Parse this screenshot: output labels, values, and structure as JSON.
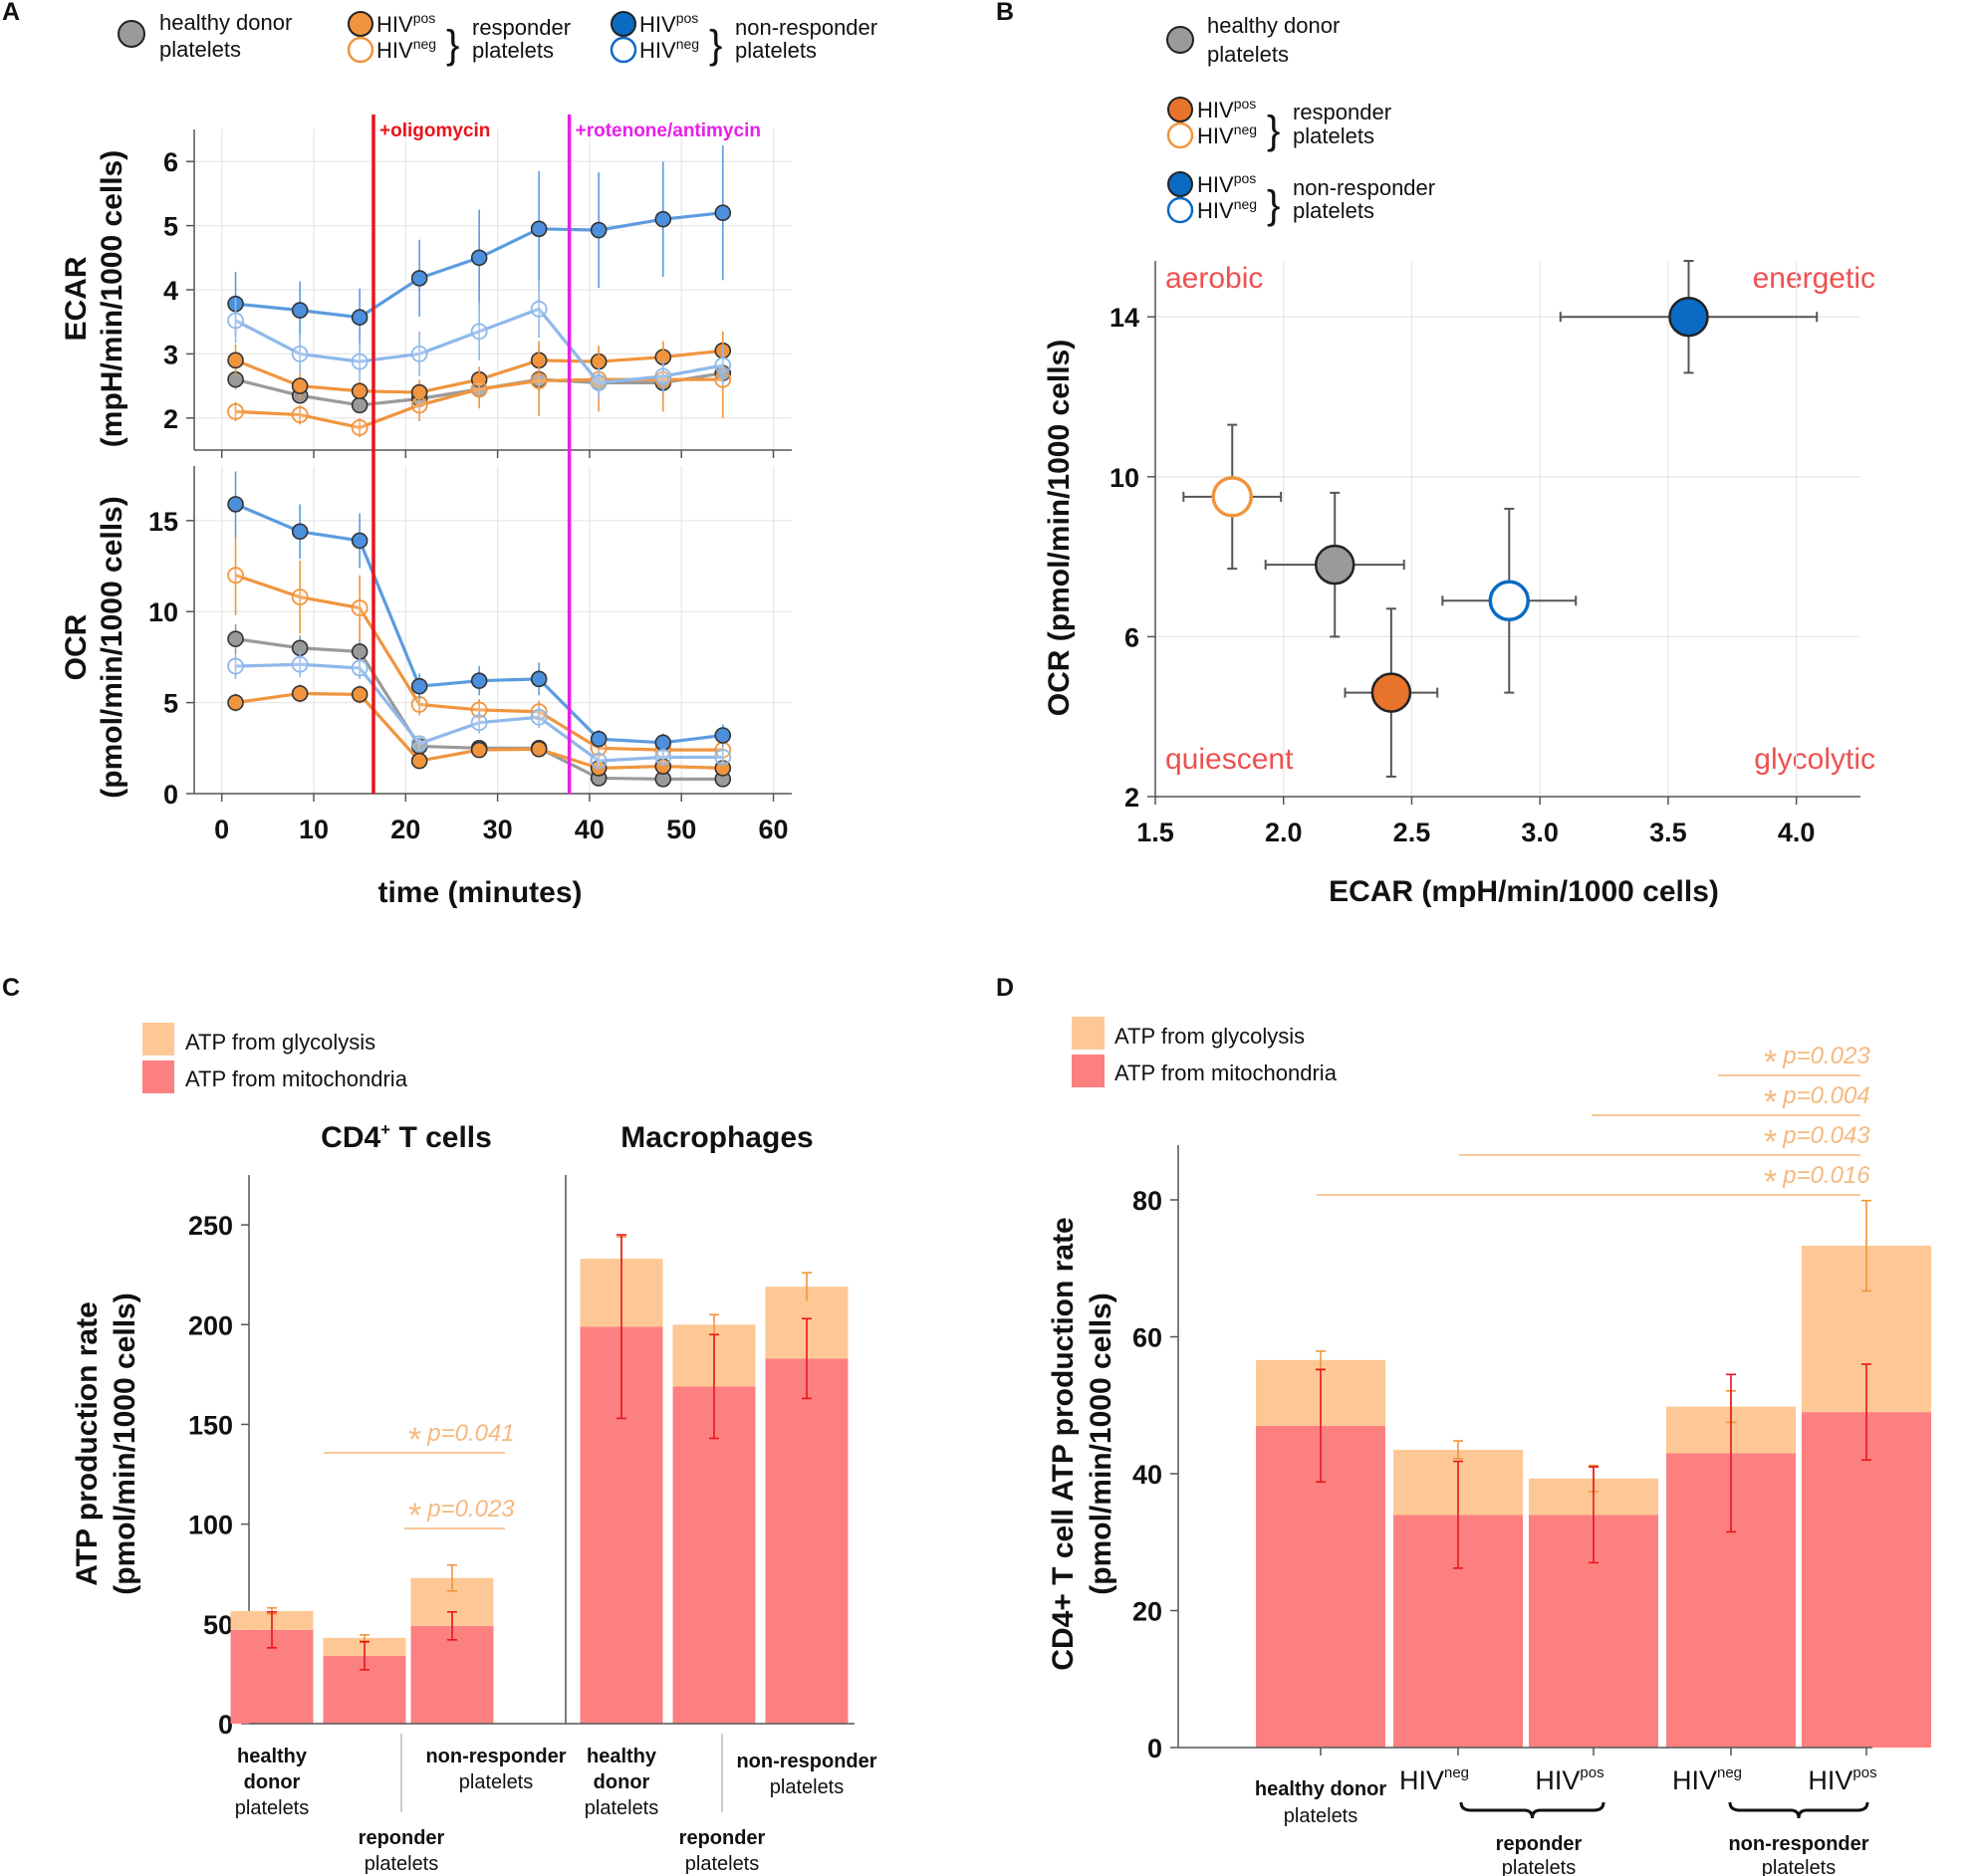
{
  "colors": {
    "gray": "#9a9a9a",
    "orange": "#f0953e",
    "orange_dark": "#e8732b",
    "blue_fill": "#4c8fdc",
    "blue_line": "#5b9be0",
    "blue_dark": "#0a6ac4",
    "ecar_light_blue": "#8fb8ea",
    "red_line": "#e8141b",
    "magenta_line": "#e81fe8",
    "glyco": "#fdc895",
    "mito": "#fd8080",
    "quadrant_label": "#ef5050",
    "sig": "#f5b97f"
  },
  "panels": {
    "A": "A",
    "B": "B",
    "C": "C",
    "D": "D"
  },
  "legend_top": {
    "healthy": [
      "healthy donor",
      "platelets"
    ],
    "responder": [
      "responder",
      "platelets"
    ],
    "non_responder": [
      "non-responder",
      "platelets"
    ],
    "hiv": "HIV",
    "pos": "pos",
    "neg": "neg"
  },
  "chart_data": [
    {
      "id": "A-ECAR",
      "type": "line",
      "title": "",
      "xlabel": "time (minutes)",
      "ylabel": [
        "ECAR",
        "(mpH/min/1000 cells)"
      ],
      "xlim": [
        -3,
        62
      ],
      "ylim": [
        1.5,
        6.5
      ],
      "xticks": [
        0,
        10,
        20,
        30,
        40,
        50,
        60
      ],
      "yticks": [
        2,
        3,
        4,
        5,
        6
      ],
      "x": [
        1.5,
        8.5,
        15,
        21.5,
        28,
        34.5,
        41,
        48,
        54.5
      ],
      "annotations": [
        {
          "label": "+oligomycin",
          "x": 16.5,
          "color": "#e8141b"
        },
        {
          "label": "+rotenone/antimycin",
          "x": 37.8,
          "color": "#e81fe8"
        }
      ],
      "series": [
        {
          "name": "healthy donor platelets",
          "values": [
            2.6,
            2.35,
            2.2,
            2.3,
            2.45,
            2.6,
            2.55,
            2.55,
            2.7
          ],
          "errors": [
            0.15,
            0.12,
            0.1,
            0.12,
            0.15,
            0.2,
            0.15,
            0.18,
            0.2
          ]
        },
        {
          "name": "HIVpos responder platelets",
          "values": [
            2.9,
            2.5,
            2.42,
            2.4,
            2.6,
            2.9,
            2.88,
            2.95,
            3.05
          ],
          "errors": [
            0.25,
            0.2,
            0.15,
            0.2,
            0.2,
            0.3,
            0.25,
            0.25,
            0.3
          ]
        },
        {
          "name": "HIVneg responder platelets",
          "values": [
            2.1,
            2.05,
            1.85,
            2.2,
            2.45,
            2.58,
            2.6,
            2.6,
            2.6
          ],
          "errors": [
            0.15,
            0.15,
            0.15,
            0.25,
            0.3,
            0.55,
            0.5,
            0.5,
            0.6
          ]
        },
        {
          "name": "HIVpos non-responder platelets",
          "values": [
            3.78,
            3.68,
            3.57,
            4.18,
            4.5,
            4.95,
            4.93,
            5.1,
            5.2
          ],
          "errors": [
            0.5,
            0.45,
            0.45,
            0.6,
            0.75,
            0.9,
            0.9,
            0.9,
            1.05
          ]
        },
        {
          "name": "HIVneg non-responder platelets",
          "values": [
            3.52,
            3.0,
            2.88,
            3.0,
            3.35,
            3.7,
            2.55,
            2.65,
            2.82
          ],
          "errors": [
            0.35,
            0.3,
            0.3,
            0.35,
            0.45,
            0.45,
            0.25,
            0.25,
            0.3
          ]
        }
      ]
    },
    {
      "id": "A-OCR",
      "type": "line",
      "title": "",
      "xlabel": "time (minutes)",
      "ylabel": [
        "OCR",
        "(pmol/min/1000 cells)"
      ],
      "xlim": [
        -3,
        62
      ],
      "ylim": [
        0,
        18
      ],
      "xticks": [
        0,
        10,
        20,
        30,
        40,
        50,
        60
      ],
      "yticks": [
        0,
        5,
        10,
        15
      ],
      "x": [
        1.5,
        8.5,
        15,
        21.5,
        28,
        34.5,
        41,
        48,
        54.5
      ],
      "series": [
        {
          "name": "healthy donor platelets",
          "values": [
            8.5,
            8.0,
            7.8,
            2.6,
            2.5,
            2.5,
            0.85,
            0.8,
            0.8
          ],
          "errors": [
            0.8,
            0.7,
            0.7,
            0.4,
            0.4,
            0.4,
            0.2,
            0.2,
            0.2
          ]
        },
        {
          "name": "HIVpos responder platelets",
          "values": [
            5.0,
            5.5,
            5.45,
            1.8,
            2.4,
            2.45,
            1.4,
            1.5,
            1.4
          ],
          "errors": [
            0.5,
            0.5,
            0.5,
            0.3,
            0.4,
            0.4,
            0.3,
            0.3,
            0.3
          ]
        },
        {
          "name": "HIVneg responder platelets",
          "values": [
            12.0,
            10.8,
            10.2,
            4.9,
            4.6,
            4.5,
            2.5,
            2.4,
            2.4
          ],
          "errors": [
            2.2,
            2.0,
            1.8,
            0.6,
            0.6,
            0.6,
            0.5,
            0.5,
            0.5
          ]
        },
        {
          "name": "HIVpos non-responder platelets",
          "values": [
            15.9,
            14.4,
            13.9,
            5.9,
            6.2,
            6.3,
            3.0,
            2.8,
            3.2
          ],
          "errors": [
            1.8,
            1.5,
            1.5,
            0.7,
            0.8,
            0.9,
            0.5,
            0.5,
            0.6
          ]
        },
        {
          "name": "HIVneg non-responder platelets",
          "values": [
            7.0,
            7.1,
            6.9,
            2.75,
            3.9,
            4.2,
            1.8,
            2.0,
            2.0
          ],
          "errors": [
            0.7,
            0.7,
            0.6,
            0.4,
            0.6,
            0.6,
            0.4,
            0.4,
            0.4
          ]
        }
      ]
    },
    {
      "id": "B",
      "type": "scatter",
      "title": "",
      "xlabel": "ECAR (mpH/min/1000 cells)",
      "ylabel": "OCR (pmol/min/1000 cells)",
      "xlim": [
        1.5,
        4.25
      ],
      "ylim": [
        2,
        15.4
      ],
      "xticks": [
        "1.5",
        "2.0",
        "2.5",
        "3.0",
        "3.5",
        "4.0"
      ],
      "yticks": [
        2,
        6,
        10,
        14
      ],
      "quadrant_labels": [
        "aerobic",
        "energetic",
        "quiescent",
        "glycolytic"
      ],
      "legend": [
        {
          "label": [
            "healthy donor",
            "platelets"
          ]
        },
        {
          "label": [
            "responder",
            "platelets"
          ]
        },
        {
          "label": [
            "non-responder",
            "platelets"
          ]
        }
      ],
      "points": [
        {
          "name": "healthy donor platelets",
          "x": 2.2,
          "y": 7.8,
          "xerr": 0.27,
          "yerr": 1.8
        },
        {
          "name": "HIVneg responder platelets",
          "x": 1.8,
          "y": 9.5,
          "xerr": 0.19,
          "yerr": 1.8
        },
        {
          "name": "HIVpos responder platelets",
          "x": 2.42,
          "y": 4.6,
          "xerr": 0.18,
          "yerr": 2.1
        },
        {
          "name": "HIVneg non-responder platelets",
          "x": 2.88,
          "y": 6.9,
          "xerr": 0.26,
          "yerr": 2.3
        },
        {
          "name": "HIVpos non-responder platelets",
          "x": 3.58,
          "y": 14.0,
          "xerr": 0.5,
          "yerr": 1.4
        }
      ]
    },
    {
      "id": "C",
      "type": "bar",
      "stacked": true,
      "title": "",
      "ylabel": [
        "ATP production rate",
        "(pmol/min/1000 cells)"
      ],
      "ylim": [
        0,
        275
      ],
      "yticks": [
        0,
        50,
        100,
        150,
        200,
        250
      ],
      "legend": [
        "ATP from glycolysis",
        "ATP from mitochondria"
      ],
      "groups": [
        "CD4",
        "Macrophages"
      ],
      "categories": [
        "healthy donor platelets",
        "reponder platelets",
        "non-responder platelets",
        "healthy donor platelets",
        "reponder platelets",
        "non-responder platelets"
      ],
      "series": [
        {
          "name": "ATP from mitochondria",
          "values": [
            47,
            34,
            49,
            199,
            169,
            183
          ],
          "errors": [
            9,
            7,
            7,
            46,
            26,
            20
          ]
        },
        {
          "name": "ATP from glycolysis",
          "values": [
            9.5,
            9,
            24,
            34,
            31,
            36
          ],
          "errors": [
            1.5,
            1.5,
            6.5,
            11,
            5,
            7
          ]
        }
      ],
      "significance": [
        {
          "label": "p=0.041",
          "from": 0,
          "to": 2
        },
        {
          "label": "p=0.023",
          "from": 1,
          "to": 2
        }
      ]
    },
    {
      "id": "D",
      "type": "bar",
      "stacked": true,
      "title": "",
      "ylabel": [
        "CD4+ T cell ATP production rate",
        "(pmol/min/1000 cells)"
      ],
      "ylim": [
        0,
        88
      ],
      "yticks": [
        0,
        20,
        40,
        60,
        80
      ],
      "legend": [
        "ATP from glycolysis",
        "ATP from mitochondria"
      ],
      "categories": [
        "healthy donor platelets",
        "HIVneg reponder platelets",
        "HIVpos reponder platelets",
        "HIVneg non-responder platelets",
        "HIVpos non-responder platelets"
      ],
      "series": [
        {
          "name": "ATP from mitochondria",
          "values": [
            47,
            34,
            34,
            43,
            49
          ],
          "errors": [
            8.2,
            7.8,
            7,
            11.5,
            7
          ]
        },
        {
          "name": "ATP from glycolysis",
          "values": [
            9.6,
            9.5,
            5.3,
            6.8,
            24.3
          ],
          "errors": [
            1.3,
            1.3,
            1.9,
            2.3,
            6.6
          ]
        }
      ],
      "significance": [
        {
          "label": "p=0.023",
          "from": 3,
          "to": 4
        },
        {
          "label": "p=0.004",
          "from": 2,
          "to": 4
        },
        {
          "label": "p=0.043",
          "from": 1,
          "to": 4
        },
        {
          "label": "p=0.016",
          "from": 0,
          "to": 4
        }
      ]
    }
  ],
  "labels_text": {
    "c_group1_pre": "CD4",
    "c_group1_sup": "+",
    "c_group1_post": " T cells",
    "c_group2": "Macrophages",
    "healthy_lines": [
      "healthy",
      "donor",
      "platelets"
    ],
    "reponder_lines": [
      "reponder",
      "platelets"
    ],
    "nonresp_lines": [
      "non-responder",
      "platelets"
    ],
    "d_healthy": [
      "healthy donor",
      "platelets"
    ],
    "d_hiv_neg": [
      "HIV",
      "neg"
    ],
    "d_hiv_pos": [
      "HIV",
      "pos"
    ],
    "d_reponder": [
      "reponder",
      "platelets"
    ],
    "d_nonresp": [
      "non-responder",
      "platelets"
    ],
    "sig_star": "*"
  }
}
